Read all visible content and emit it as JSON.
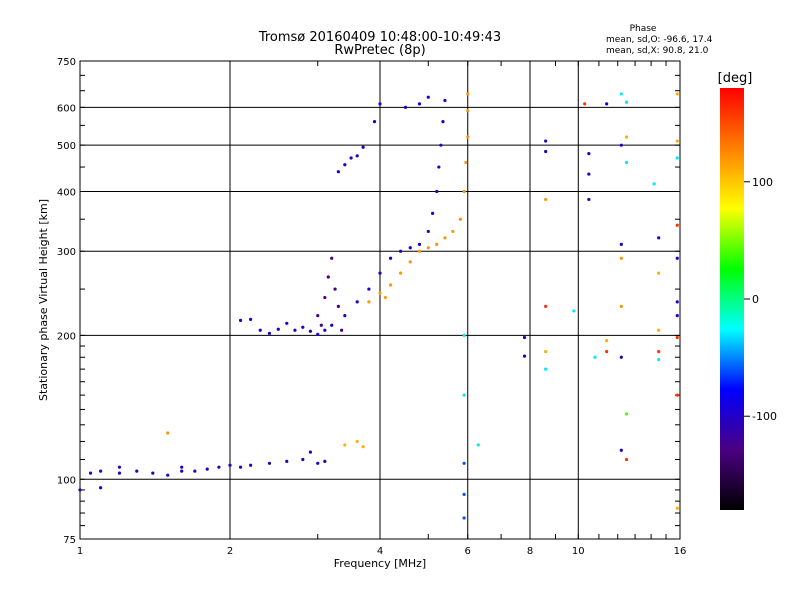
{
  "chart_data": {
    "type": "scatter",
    "title": "Tromsø 20160409 10:48:00-10:49:43",
    "subtitle": "RwPretec (8p)",
    "xlabel": "Frequency [MHz]",
    "ylabel": "Stationary phase Virtual Height [km]",
    "x_scale": "log",
    "y_scale": "log",
    "xlim": [
      1,
      16
    ],
    "ylim": [
      75,
      750
    ],
    "xticks": [
      1,
      2,
      4,
      6,
      8,
      10,
      16
    ],
    "yticks": [
      75,
      100,
      200,
      300,
      400,
      500,
      600,
      750
    ],
    "grid": true,
    "phase_info": {
      "title": "Phase",
      "line1": "mean, sd,O: -96.6, 17.4",
      "line2": "mean, sd,X:  90.8, 21.0"
    },
    "colorbar": {
      "label": "[deg]",
      "min": -180,
      "max": 180,
      "ticks": [
        -100,
        0,
        100
      ],
      "stops": [
        "#000000",
        "#4b0082",
        "#0000ff",
        "#00ffff",
        "#00ff00",
        "#ffff00",
        "#ff8000",
        "#ff0000"
      ]
    },
    "series": [
      {
        "points": [
          [
            1.0,
            95,
            -100
          ],
          [
            1.1,
            96,
            -100
          ],
          [
            1.05,
            103,
            -100
          ],
          [
            1.1,
            104,
            -100
          ],
          [
            1.2,
            103,
            -100
          ],
          [
            1.3,
            104,
            -100
          ],
          [
            1.4,
            103,
            -100
          ],
          [
            1.5,
            102,
            -100
          ],
          [
            1.6,
            104,
            -100
          ],
          [
            1.7,
            104,
            -100
          ],
          [
            1.8,
            105,
            -100
          ],
          [
            1.9,
            106,
            -100
          ],
          [
            2.0,
            107,
            -100
          ],
          [
            2.1,
            106,
            -100
          ],
          [
            2.2,
            107,
            -100
          ],
          [
            2.4,
            108,
            -100
          ],
          [
            2.6,
            109,
            -100
          ],
          [
            2.8,
            110,
            -100
          ],
          [
            3.0,
            108,
            -100
          ],
          [
            3.1,
            109,
            -100
          ],
          [
            2.9,
            114,
            -100
          ],
          [
            1.2,
            106,
            -100
          ],
          [
            1.6,
            106,
            -100
          ],
          [
            2.1,
            215,
            -100
          ],
          [
            2.2,
            216,
            -100
          ],
          [
            2.3,
            205,
            -100
          ],
          [
            2.4,
            202,
            -100
          ],
          [
            2.5,
            206,
            -100
          ],
          [
            2.6,
            212,
            -100
          ],
          [
            2.7,
            205,
            -100
          ],
          [
            2.8,
            208,
            -100
          ],
          [
            2.9,
            204,
            -100
          ],
          [
            3.0,
            201,
            -100
          ],
          [
            3.1,
            205,
            -100
          ],
          [
            3.2,
            210,
            -100
          ],
          [
            3.4,
            220,
            -100
          ],
          [
            3.6,
            235,
            -100
          ],
          [
            3.8,
            250,
            -100
          ],
          [
            4.0,
            270,
            -100
          ],
          [
            4.2,
            290,
            -100
          ],
          [
            4.4,
            300,
            -100
          ],
          [
            4.6,
            305,
            -100
          ],
          [
            4.8,
            310,
            -100
          ],
          [
            5.0,
            330,
            -100
          ],
          [
            5.1,
            360,
            -100
          ],
          [
            5.2,
            400,
            -100
          ],
          [
            5.25,
            450,
            -100
          ],
          [
            5.3,
            500,
            -100
          ],
          [
            5.35,
            560,
            -100
          ],
          [
            5.4,
            620,
            -100
          ],
          [
            3.3,
            440,
            -100
          ],
          [
            3.4,
            455,
            -100
          ],
          [
            3.5,
            470,
            -100
          ],
          [
            3.6,
            475,
            -100
          ],
          [
            3.7,
            495,
            -100
          ],
          [
            3.9,
            560,
            -100
          ],
          [
            4.0,
            610,
            -100
          ],
          [
            4.5,
            600,
            -100
          ],
          [
            4.8,
            610,
            -100
          ],
          [
            5.0,
            630,
            -100
          ],
          [
            3.0,
            220,
            -130
          ],
          [
            3.1,
            240,
            -130
          ],
          [
            3.15,
            265,
            -130
          ],
          [
            3.2,
            290,
            -130
          ],
          [
            3.25,
            250,
            -130
          ],
          [
            3.05,
            210,
            -130
          ],
          [
            3.3,
            230,
            -130
          ],
          [
            3.35,
            205,
            -130
          ],
          [
            4.0,
            245,
            120
          ],
          [
            4.2,
            255,
            120
          ],
          [
            4.4,
            270,
            120
          ],
          [
            4.6,
            285,
            120
          ],
          [
            4.8,
            300,
            120
          ],
          [
            5.0,
            305,
            120
          ],
          [
            5.2,
            310,
            120
          ],
          [
            5.4,
            320,
            120
          ],
          [
            5.6,
            330,
            120
          ],
          [
            5.8,
            350,
            120
          ],
          [
            5.9,
            400,
            120
          ],
          [
            5.95,
            460,
            120
          ],
          [
            6.0,
            520,
            120
          ],
          [
            6.0,
            590,
            120
          ],
          [
            6.0,
            640,
            120
          ],
          [
            3.8,
            235,
            120
          ],
          [
            4.1,
            240,
            120
          ],
          [
            3.4,
            118,
            110
          ],
          [
            3.6,
            120,
            110
          ],
          [
            3.7,
            117,
            110
          ],
          [
            1.5,
            125,
            120
          ],
          [
            5.9,
            200,
            -30
          ],
          [
            5.9,
            150,
            -30
          ],
          [
            5.9,
            108,
            -60
          ],
          [
            5.9,
            93,
            -60
          ],
          [
            5.9,
            83,
            -60
          ],
          [
            6.3,
            118,
            -30
          ],
          [
            7.8,
            198,
            -100
          ],
          [
            7.8,
            181,
            -100
          ],
          [
            8.6,
            510,
            -100
          ],
          [
            8.6,
            485,
            -100
          ],
          [
            8.6,
            385,
            120
          ],
          [
            8.6,
            230,
            160
          ],
          [
            8.6,
            185,
            110
          ],
          [
            8.6,
            170,
            -30
          ],
          [
            9.8,
            225,
            -30
          ],
          [
            10.3,
            610,
            160
          ],
          [
            10.5,
            480,
            -100
          ],
          [
            10.5,
            435,
            -100
          ],
          [
            10.5,
            385,
            -100
          ],
          [
            11.4,
            610,
            -100
          ],
          [
            11.4,
            195,
            110
          ],
          [
            11.4,
            185,
            160
          ],
          [
            12.2,
            640,
            -30
          ],
          [
            12.2,
            500,
            -100
          ],
          [
            12.2,
            310,
            -100
          ],
          [
            12.2,
            290,
            120
          ],
          [
            12.2,
            180,
            -100
          ],
          [
            12.2,
            115,
            -100
          ],
          [
            12.5,
            615,
            -30
          ],
          [
            12.5,
            460,
            -30
          ],
          [
            12.5,
            137,
            40
          ],
          [
            12.5,
            110,
            160
          ],
          [
            14.2,
            415,
            -30
          ],
          [
            14.5,
            320,
            -100
          ],
          [
            14.5,
            270,
            110
          ],
          [
            14.5,
            205,
            110
          ],
          [
            14.5,
            185,
            160
          ],
          [
            14.5,
            178,
            -30
          ],
          [
            15.8,
            640,
            110
          ],
          [
            15.8,
            510,
            110
          ],
          [
            15.8,
            470,
            -30
          ],
          [
            15.8,
            340,
            160
          ],
          [
            15.8,
            290,
            -100
          ],
          [
            15.8,
            235,
            -100
          ],
          [
            15.8,
            220,
            -100
          ],
          [
            15.8,
            198,
            160
          ],
          [
            15.8,
            150,
            160
          ],
          [
            15.8,
            87,
            110
          ],
          [
            12.2,
            230,
            120
          ],
          [
            10.8,
            180,
            -30
          ],
          [
            12.5,
            520,
            110
          ]
        ]
      }
    ]
  }
}
